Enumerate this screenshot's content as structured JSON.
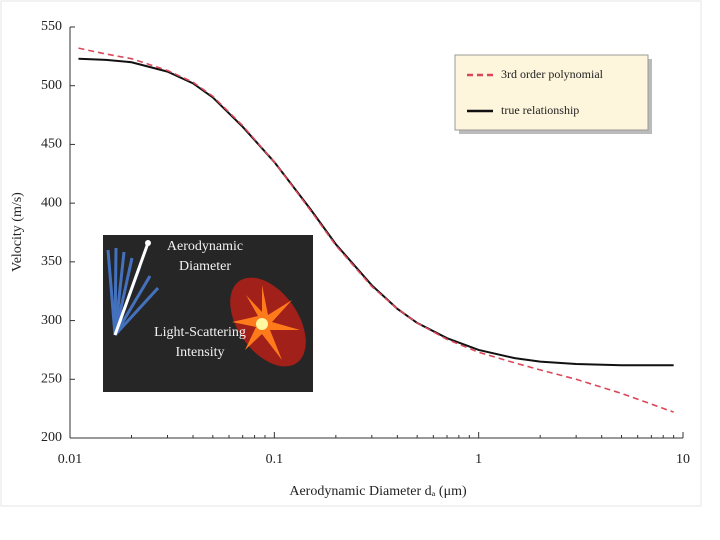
{
  "chart_data": {
    "type": "line",
    "x_label": "Aerodynamic Diameter dₐ (μm)",
    "y_label": "Velocity (m/s)",
    "x": [
      0.011,
      0.015,
      0.02,
      0.03,
      0.04,
      0.05,
      0.07,
      0.1,
      0.15,
      0.2,
      0.3,
      0.4,
      0.5,
      0.7,
      1,
      1.5,
      2,
      3,
      5,
      9
    ],
    "series": [
      {
        "name": "3rd order polynomial",
        "color": "#d9485a",
        "style": "dashed",
        "values": [
          532,
          527,
          523,
          513,
          503,
          491,
          466,
          435,
          394,
          364,
          329,
          310,
          298,
          284,
          273,
          264,
          258,
          250,
          238,
          222
        ]
      },
      {
        "name": "true relationship",
        "color": "#111111",
        "style": "solid",
        "values": [
          523,
          522,
          520,
          512,
          502,
          490,
          465,
          435,
          395,
          365,
          330,
          310,
          298,
          285,
          275,
          268,
          265,
          263,
          262,
          262
        ]
      }
    ],
    "xscale": "log",
    "xlim": [
      0.01,
      10
    ],
    "xticks": [
      0.01,
      0.1,
      1,
      10
    ],
    "ylim": [
      200,
      550
    ],
    "yticks": [
      200,
      250,
      300,
      350,
      400,
      450,
      500,
      550
    ],
    "legend": "top-right",
    "inset_labels": [
      [
        "Aerodynamic",
        "Diameter"
      ],
      [
        "Light-Scattering",
        "Intensity"
      ]
    ]
  }
}
